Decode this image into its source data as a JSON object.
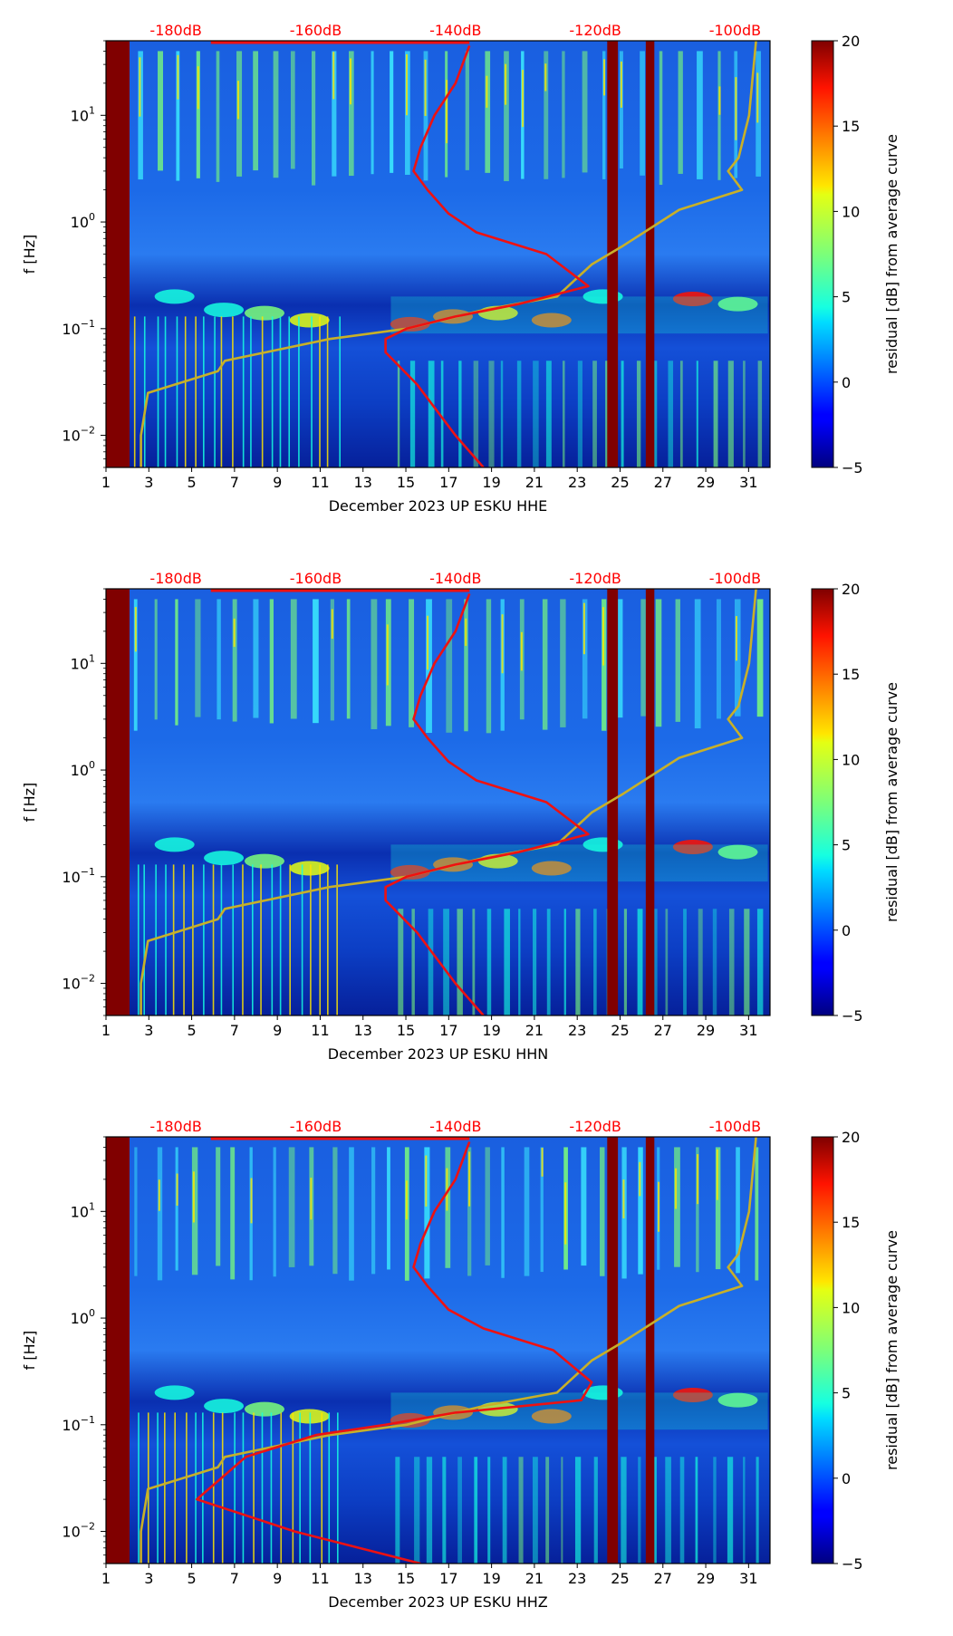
{
  "colors": {
    "db_top_labels": "#ff0000",
    "psd_curve": "#ee1111",
    "noise_model": "#c8b028",
    "masked_band": "#800000",
    "background_low": "#000080"
  },
  "shared": {
    "x_tick_labels": [
      "1",
      "3",
      "5",
      "7",
      "9",
      "11",
      "13",
      "15",
      "17",
      "19",
      "21",
      "23",
      "25",
      "27",
      "29",
      "31"
    ],
    "y_label": "f [Hz]",
    "y_tick_labels": [
      {
        "base": "10",
        "exp": "1"
      },
      {
        "base": "10",
        "exp": "0"
      },
      {
        "base": "10",
        "exp": "−1"
      },
      {
        "base": "10",
        "exp": "−2"
      }
    ],
    "db_labels": [
      "-180dB",
      "-160dB",
      "-140dB",
      "-120dB",
      "-100dB"
    ],
    "colorbar_label": "residual [dB] from average curve",
    "colorbar_ticks": [
      "20",
      "15",
      "10",
      "5",
      "0",
      "−5"
    ]
  },
  "chart_data": [
    {
      "type": "heatmap",
      "title": "",
      "xlabel": "December 2023 UP ESKU  HHE",
      "ylabel": "f [Hz]",
      "x_range_days": [
        1,
        32
      ],
      "y_range_hz": [
        0.005,
        50
      ],
      "y_scale": "log",
      "colorbar": {
        "label": "residual [dB] from average curve",
        "range_db": [
          -5,
          20
        ]
      },
      "masked_days": [
        [
          1,
          2.1
        ],
        [
          24.4,
          24.9
        ],
        [
          26.2,
          26.6
        ]
      ],
      "top_axis_db": [
        -180,
        -160,
        -140,
        -120,
        -100
      ],
      "noise_model_curve": {
        "name": "noise model (dB)",
        "db": [
          -97,
          -98,
          -99.5,
          -101,
          -99,
          -108,
          -116,
          -120.5,
          -125.5,
          -136,
          -147,
          -158,
          -173,
          -174,
          -184,
          -185,
          -185
        ],
        "freq_hz": [
          50,
          10,
          4,
          3,
          2,
          1.3,
          0.6,
          0.4,
          0.2,
          0.15,
          0.1,
          0.08,
          0.05,
          0.04,
          0.025,
          0.01,
          0.005
        ]
      },
      "psd_curve": {
        "name": "average PSD (dB)",
        "db": [
          -138,
          -140,
          -143,
          -145,
          -146,
          -144,
          -141,
          -137,
          -127,
          -121,
          -131,
          -140,
          -147,
          -150,
          -150,
          -145.5,
          -140,
          -136
        ],
        "freq_hz": [
          45,
          20,
          10,
          5,
          3,
          2,
          1.2,
          0.8,
          0.5,
          0.25,
          0.17,
          0.13,
          0.1,
          0.08,
          0.06,
          0.03,
          0.01,
          0.005
        ]
      }
    },
    {
      "type": "heatmap",
      "title": "",
      "xlabel": "December 2023 UP ESKU  HHN",
      "ylabel": "f [Hz]",
      "x_range_days": [
        1,
        32
      ],
      "y_range_hz": [
        0.005,
        50
      ],
      "y_scale": "log",
      "colorbar": {
        "label": "residual [dB] from average curve",
        "range_db": [
          -5,
          20
        ]
      },
      "masked_days": [
        [
          1,
          2.1
        ],
        [
          24.4,
          24.9
        ],
        [
          26.2,
          26.6
        ]
      ],
      "top_axis_db": [
        -180,
        -160,
        -140,
        -120,
        -100
      ],
      "noise_model_curve": {
        "name": "noise model (dB)",
        "db": [
          -97,
          -98,
          -99.5,
          -101,
          -99,
          -108,
          -116,
          -120.5,
          -125.5,
          -136,
          -147,
          -158,
          -173,
          -174,
          -184,
          -185,
          -185
        ],
        "freq_hz": [
          50,
          10,
          4,
          3,
          2,
          1.3,
          0.6,
          0.4,
          0.2,
          0.15,
          0.1,
          0.08,
          0.05,
          0.04,
          0.025,
          0.01,
          0.005
        ]
      },
      "psd_curve": {
        "name": "average PSD (dB)",
        "db": [
          -138,
          -140,
          -143,
          -145,
          -146,
          -144,
          -141,
          -137,
          -127,
          -121,
          -131,
          -140,
          -147,
          -150,
          -150,
          -145.5,
          -140,
          -136
        ],
        "freq_hz": [
          45,
          20,
          10,
          5,
          3,
          2,
          1.2,
          0.8,
          0.5,
          0.25,
          0.17,
          0.13,
          0.1,
          0.08,
          0.06,
          0.03,
          0.01,
          0.005
        ]
      }
    },
    {
      "type": "heatmap",
      "title": "",
      "xlabel": "December 2023 UP ESKU  HHZ",
      "ylabel": "f [Hz]",
      "x_range_days": [
        1,
        32
      ],
      "y_range_hz": [
        0.005,
        50
      ],
      "y_scale": "log",
      "colorbar": {
        "label": "residual [dB] from average curve",
        "range_db": [
          -5,
          20
        ]
      },
      "masked_days": [
        [
          1,
          2.1
        ],
        [
          24.4,
          24.9
        ],
        [
          26.2,
          26.6
        ]
      ],
      "top_axis_db": [
        -180,
        -160,
        -140,
        -120,
        -100
      ],
      "noise_model_curve": {
        "name": "noise model (dB)",
        "db": [
          -97,
          -98,
          -99.5,
          -101,
          -99,
          -108,
          -116,
          -120.5,
          -125.5,
          -136,
          -147,
          -158,
          -173,
          -174,
          -184,
          -185,
          -185
        ],
        "freq_hz": [
          50,
          10,
          4,
          3,
          2,
          1.3,
          0.6,
          0.4,
          0.2,
          0.15,
          0.1,
          0.08,
          0.05,
          0.04,
          0.025,
          0.01,
          0.005
        ]
      },
      "psd_curve": {
        "name": "average PSD (dB)",
        "db": [
          -138,
          -140,
          -143,
          -145,
          -146,
          -144,
          -141,
          -136,
          -126,
          -120.5,
          -122,
          -140,
          -150,
          -160,
          -170,
          -177,
          -163,
          -145
        ],
        "freq_hz": [
          45,
          20,
          10,
          5,
          3,
          2,
          1.2,
          0.8,
          0.5,
          0.25,
          0.17,
          0.13,
          0.1,
          0.08,
          0.05,
          0.02,
          0.01,
          0.005
        ]
      }
    }
  ]
}
